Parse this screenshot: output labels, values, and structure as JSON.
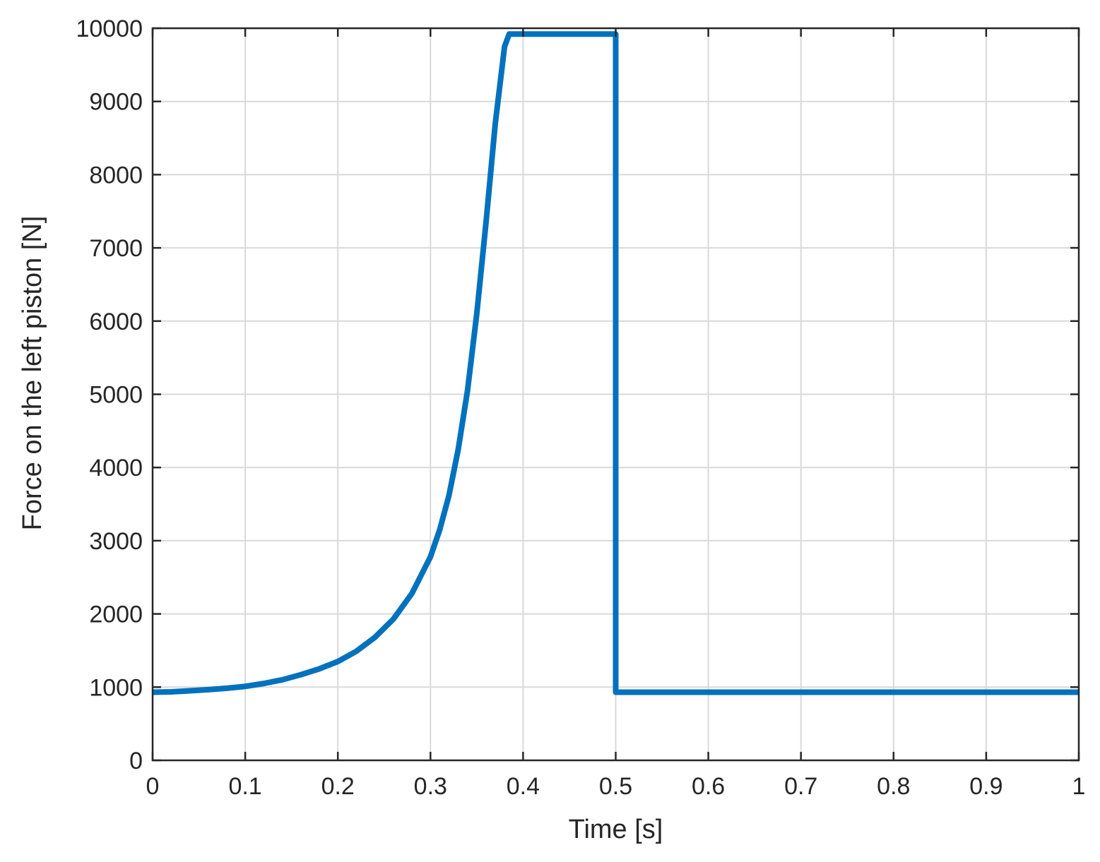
{
  "chart_data": {
    "type": "line",
    "title": "",
    "xlabel": "Time [s]",
    "ylabel": "Force on the left piston [N]",
    "xlim": [
      0,
      1
    ],
    "ylim": [
      0,
      10000
    ],
    "x_ticks": [
      0,
      0.1,
      0.2,
      0.3,
      0.4,
      0.5,
      0.6,
      0.7,
      0.8,
      0.9,
      1
    ],
    "x_tick_labels": [
      "0",
      "0.1",
      "0.2",
      "0.3",
      "0.4",
      "0.5",
      "0.6",
      "0.7",
      "0.8",
      "0.9",
      "1"
    ],
    "y_ticks": [
      0,
      1000,
      2000,
      3000,
      4000,
      5000,
      6000,
      7000,
      8000,
      9000,
      10000
    ],
    "y_tick_labels": [
      "0",
      "1000",
      "2000",
      "3000",
      "4000",
      "5000",
      "6000",
      "7000",
      "8000",
      "9000",
      "10000"
    ],
    "grid": true,
    "colors": {
      "series": "#0072BD",
      "axis": "#262626",
      "grid": "#d9d9d9"
    },
    "series": [
      {
        "x": [
          0,
          0.02,
          0.04,
          0.06,
          0.08,
          0.1,
          0.12,
          0.14,
          0.16,
          0.18,
          0.2,
          0.22,
          0.24,
          0.26,
          0.28,
          0.3,
          0.31,
          0.32,
          0.33,
          0.34,
          0.35,
          0.36,
          0.37,
          0.38,
          0.385,
          0.385,
          0.5,
          0.5,
          1
        ],
        "y": [
          930,
          935,
          950,
          965,
          985,
          1010,
          1050,
          1100,
          1170,
          1250,
          1350,
          1490,
          1680,
          1930,
          2280,
          2780,
          3150,
          3620,
          4250,
          5050,
          6100,
          7350,
          8700,
          9750,
          9920,
          9920,
          9920,
          930,
          930
        ]
      }
    ]
  }
}
